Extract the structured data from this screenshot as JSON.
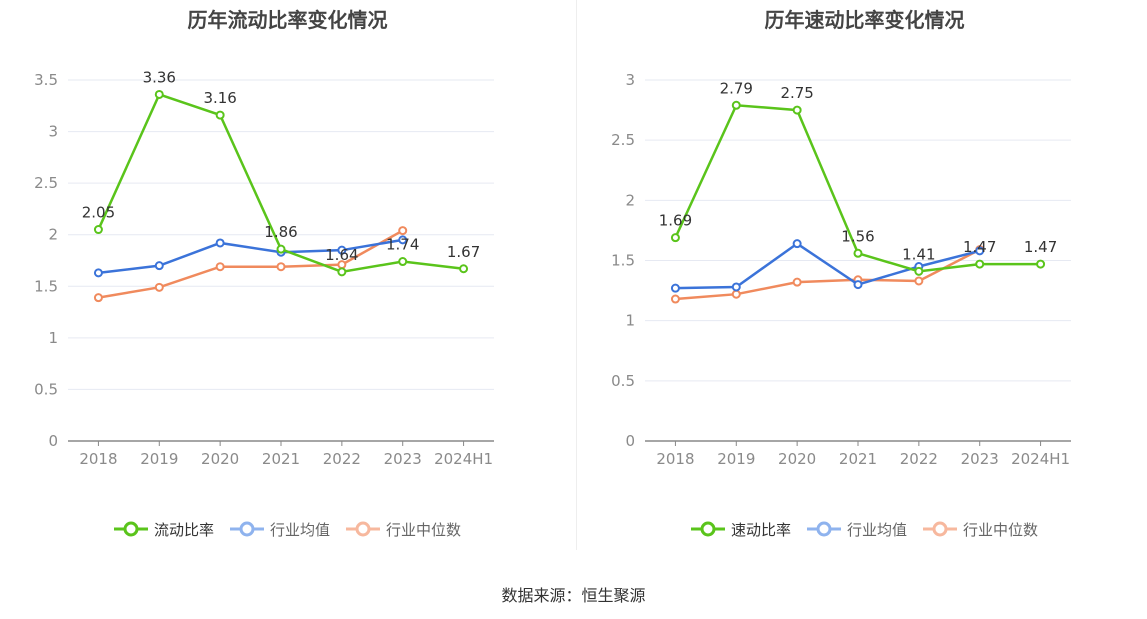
{
  "source_text": "数据来源：恒生聚源",
  "colors": {
    "main": "#5ac41b",
    "avg": "#3b73d9",
    "median": "#f08a5d",
    "avg_legend": "#8fb3ee",
    "median_legend": "#f7b89e"
  },
  "chart_data": [
    {
      "type": "line",
      "title": "历年流动比率变化情况",
      "categories": [
        "2018",
        "2019",
        "2020",
        "2021",
        "2022",
        "2023",
        "2024H1"
      ],
      "ylim": [
        0,
        3.5
      ],
      "yticks": [
        "0",
        "0.5",
        "1",
        "1.5",
        "2",
        "2.5",
        "3",
        "3.5"
      ],
      "legend_position": "bottom",
      "grid": true,
      "series": [
        {
          "name": "流动比率",
          "values": [
            2.05,
            3.36,
            3.16,
            1.86,
            1.64,
            1.74,
            1.67
          ],
          "labels": [
            "2.05",
            "3.36",
            "3.16",
            "1.86",
            "1.64",
            "1.74",
            "1.67"
          ]
        },
        {
          "name": "行业均值",
          "values": [
            1.63,
            1.7,
            1.92,
            1.83,
            1.85,
            1.95,
            null
          ]
        },
        {
          "name": "行业中位数",
          "values": [
            1.39,
            1.49,
            1.69,
            1.69,
            1.71,
            2.04,
            null
          ]
        }
      ]
    },
    {
      "type": "line",
      "title": "历年速动比率变化情况",
      "categories": [
        "2018",
        "2019",
        "2020",
        "2021",
        "2022",
        "2023",
        "2024H1"
      ],
      "ylim": [
        0,
        3
      ],
      "yticks": [
        "0",
        "0.5",
        "1",
        "1.5",
        "2",
        "2.5",
        "3"
      ],
      "legend_position": "bottom",
      "grid": true,
      "series": [
        {
          "name": "速动比率",
          "values": [
            1.69,
            2.79,
            2.75,
            1.56,
            1.41,
            1.47,
            1.47
          ],
          "labels": [
            "1.69",
            "2.79",
            "2.75",
            "1.56",
            "1.41",
            "1.47",
            "1.47"
          ]
        },
        {
          "name": "行业均值",
          "values": [
            1.27,
            1.28,
            1.64,
            1.3,
            1.45,
            1.58,
            null
          ]
        },
        {
          "name": "行业中位数",
          "values": [
            1.18,
            1.22,
            1.32,
            1.34,
            1.33,
            1.59,
            null
          ]
        }
      ]
    }
  ]
}
